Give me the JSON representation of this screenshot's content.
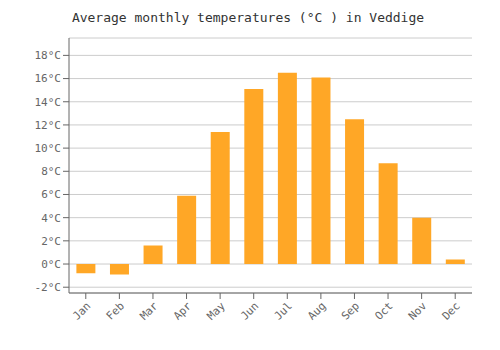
{
  "chart_data": {
    "type": "bar",
    "title": "Average monthly temperatures (°C ) in Veddige",
    "categories": [
      "Jan",
      "Feb",
      "Mar",
      "Apr",
      "May",
      "Jun",
      "Jul",
      "Aug",
      "Sep",
      "Oct",
      "Nov",
      "Dec"
    ],
    "values": [
      -0.8,
      -0.9,
      1.6,
      5.9,
      11.4,
      15.1,
      16.5,
      16.1,
      12.5,
      8.7,
      4.0,
      0.4
    ],
    "color": "#FFA726",
    "ylim": [
      -2.5,
      19.5
    ],
    "yticks": [
      {
        "value": -2,
        "label": "-2°C"
      },
      {
        "value": 0,
        "label": "0°C"
      },
      {
        "value": 2,
        "label": "2°C"
      },
      {
        "value": 4,
        "label": "4°C"
      },
      {
        "value": 6,
        "label": "6°C"
      },
      {
        "value": 8,
        "label": "8°C"
      },
      {
        "value": 10,
        "label": "10°C"
      },
      {
        "value": 12,
        "label": "12°C"
      },
      {
        "value": 14,
        "label": "14°C"
      },
      {
        "value": 16,
        "label": "16°C"
      },
      {
        "value": 18,
        "label": "18°C"
      }
    ],
    "grid": true
  }
}
